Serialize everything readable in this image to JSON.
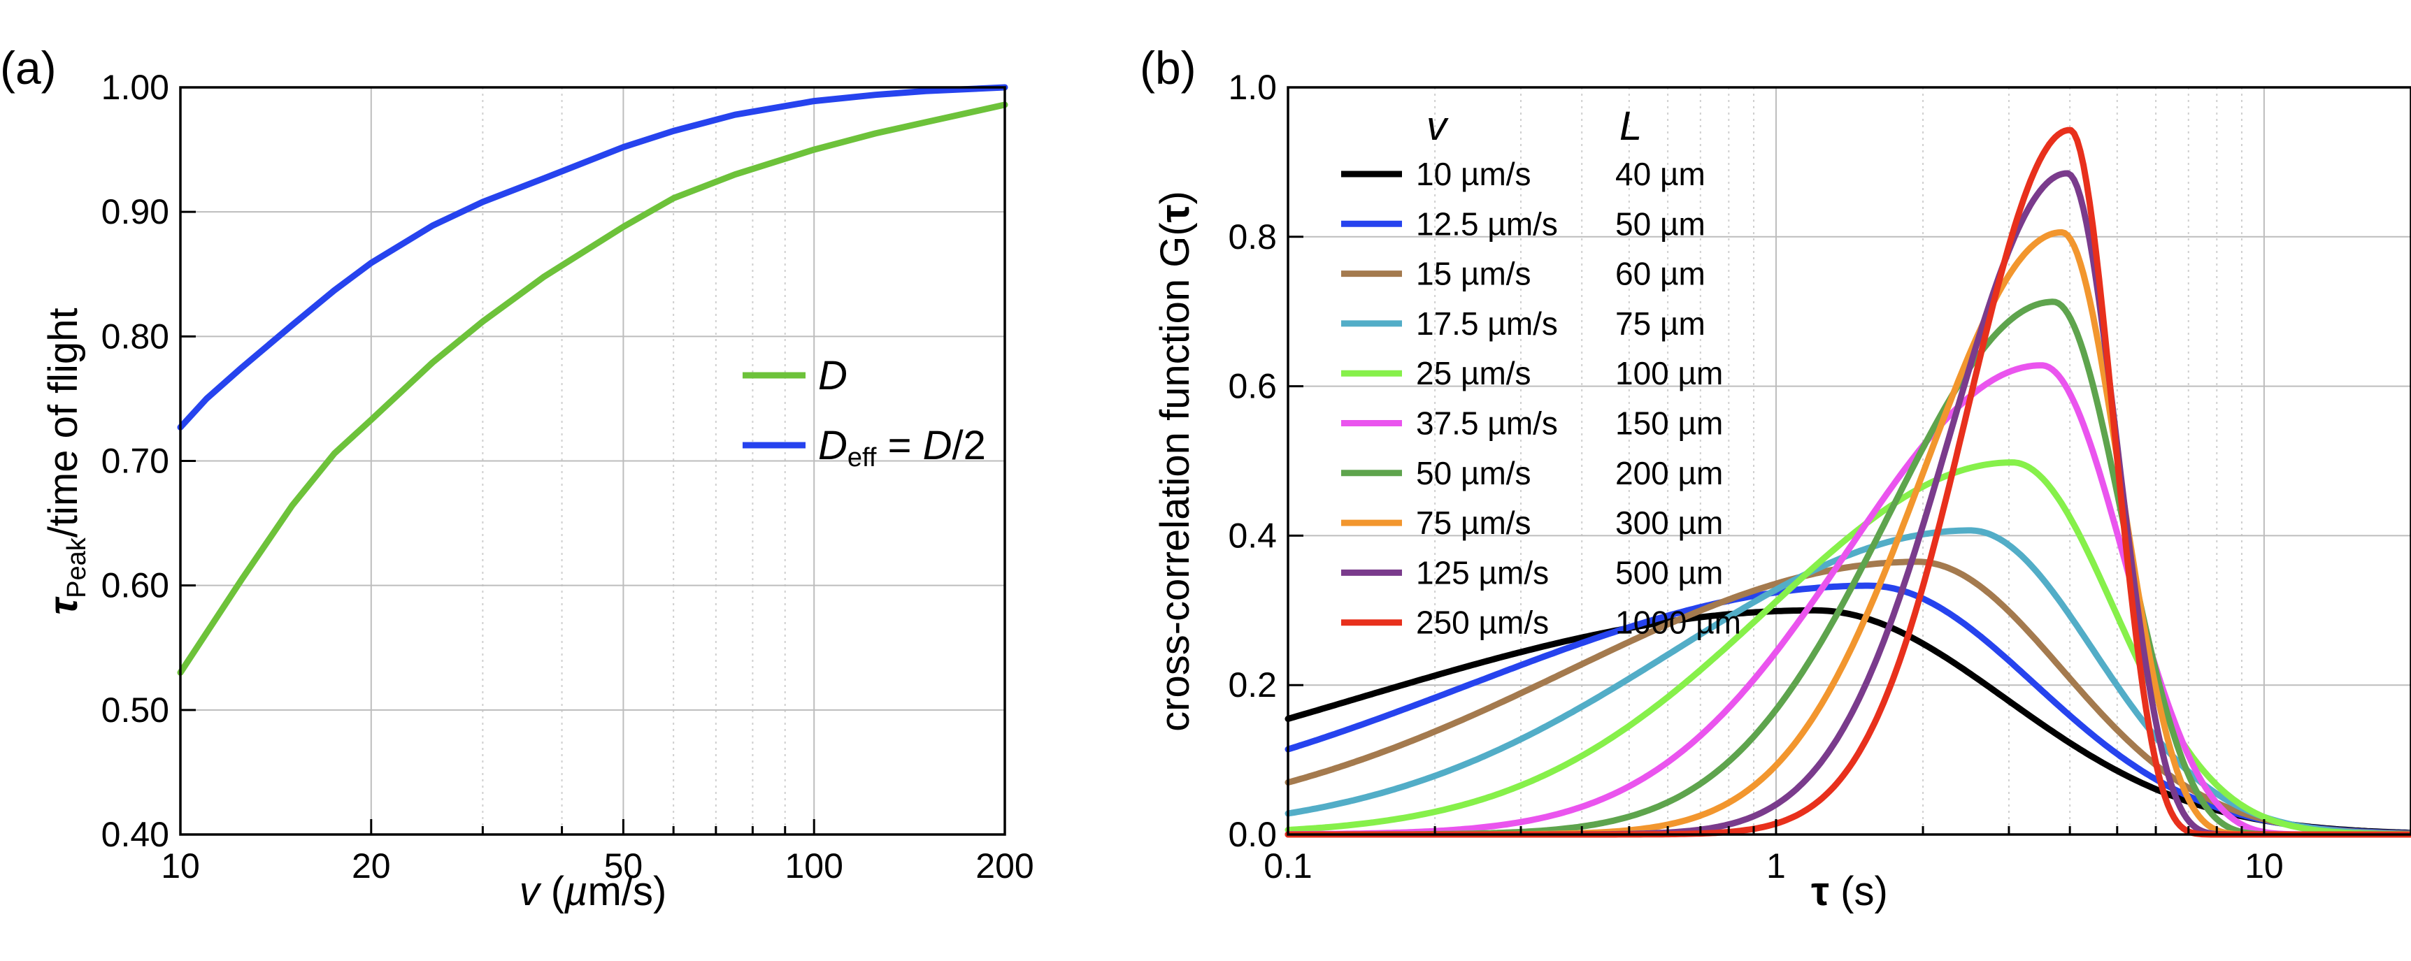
{
  "chart_data": [
    {
      "panel": "(a)",
      "type": "line",
      "xscale": "log",
      "xlim": [
        10,
        200
      ],
      "ylim": [
        0.4,
        1.0
      ],
      "xticks": [
        10,
        20,
        50,
        100,
        200
      ],
      "xtick_labels": [
        "10",
        "20",
        "50",
        "100",
        "200"
      ],
      "yticks": [
        0.4,
        0.5,
        0.6,
        0.7,
        0.8,
        0.9,
        1.0
      ],
      "ytick_labels": [
        "0.40",
        "0.50",
        "0.60",
        "0.70",
        "0.80",
        "0.90",
        "1.00"
      ],
      "xlabel": {
        "var": "v",
        "rest": " (",
        "unit_mu": "µ",
        "unit_rest": "m/s)"
      },
      "ylabel": {
        "tau": "τ",
        "sub": "Peak",
        "rest": "/time of flight"
      },
      "grid": true,
      "legend_position": "center-right",
      "legend": [
        {
          "var": "D",
          "sub": "",
          "rest": ""
        },
        {
          "var": "D",
          "sub": "eff",
          "rest": " = ",
          "var2": "D",
          "rest2": "/2"
        }
      ],
      "series": [
        {
          "name": "D",
          "color": "#6dc23a",
          "x": [
            10,
            12.5,
            15,
            17.5,
            20,
            25,
            30,
            37.5,
            50,
            60,
            75,
            100,
            125,
            150,
            200
          ],
          "y": [
            0.53,
            0.605,
            0.664,
            0.706,
            0.733,
            0.779,
            0.812,
            0.848,
            0.888,
            0.911,
            0.93,
            0.95,
            0.963,
            0.972,
            0.986
          ]
        },
        {
          "name": "Deff = D/2",
          "color": "#2643ee",
          "x": [
            10,
            11,
            12.5,
            15,
            17.5,
            20,
            25,
            30,
            37.5,
            50,
            60,
            75,
            100,
            125,
            150,
            200
          ],
          "y": [
            0.727,
            0.75,
            0.775,
            0.809,
            0.837,
            0.859,
            0.889,
            0.908,
            0.927,
            0.952,
            0.965,
            0.978,
            0.989,
            0.994,
            0.997,
            1.0
          ]
        }
      ]
    },
    {
      "panel": "(b)",
      "type": "line",
      "xscale": "log",
      "xlim": [
        0.1,
        20
      ],
      "ylim": [
        0.0,
        1.0
      ],
      "xticks": [
        0.1,
        1,
        10
      ],
      "xtick_labels": [
        "0.1",
        "1",
        "10"
      ],
      "yticks": [
        0.0,
        0.2,
        0.4,
        0.6,
        0.8,
        1.0
      ],
      "ytick_labels": [
        "0.0",
        "0.2",
        "0.4",
        "0.6",
        "0.8",
        "1.0"
      ],
      "xlabel": {
        "tau": "τ",
        "rest": " (s)"
      },
      "ylabel": {
        "text": "cross-correlation function G(",
        "tau": "τ",
        "close": ")"
      },
      "grid": true,
      "legend_position": "top-left",
      "legend_headers": {
        "v": "v",
        "L": "L"
      },
      "series": [
        {
          "v": "10 µm/s",
          "L": "40 µm",
          "color": "#000000",
          "peak": 0.3,
          "tpeak": 1.2,
          "w": 0.9
        },
        {
          "v": "12.5 µm/s",
          "L": "50 µm",
          "color": "#2643ee",
          "peak": 0.333,
          "tpeak": 1.55,
          "w": 0.78
        },
        {
          "v": "15 µm/s",
          "L": "60 µm",
          "color": "#a47a4e",
          "peak": 0.365,
          "tpeak": 1.95,
          "w": 0.68
        },
        {
          "v": "17.5 µm/s",
          "L": "75 µm",
          "color": "#52adc7",
          "peak": 0.407,
          "tpeak": 2.5,
          "w": 0.58
        },
        {
          "v": "25 µm/s",
          "L": "100 µm",
          "color": "#86f04a",
          "peak": 0.498,
          "tpeak": 3.05,
          "w": 0.48
        },
        {
          "v": "37.5 µm/s",
          "L": "150 µm",
          "color": "#ea54ee",
          "peak": 0.628,
          "tpeak": 3.5,
          "w": 0.38
        },
        {
          "v": "50 µm/s",
          "L": "200 µm",
          "color": "#5ea44d",
          "peak": 0.713,
          "tpeak": 3.7,
          "w": 0.32
        },
        {
          "v": "75 µm/s",
          "L": "300 µm",
          "color": "#f2962e",
          "peak": 0.806,
          "tpeak": 3.85,
          "w": 0.27
        },
        {
          "v": "125 µm/s",
          "L": "500 µm",
          "color": "#7a3b8c",
          "peak": 0.885,
          "tpeak": 3.95,
          "w": 0.23
        },
        {
          "v": "250 µm/s",
          "L": "1000 µm",
          "color": "#e8301c",
          "peak": 0.943,
          "tpeak": 4.0,
          "w": 0.2
        }
      ]
    }
  ]
}
